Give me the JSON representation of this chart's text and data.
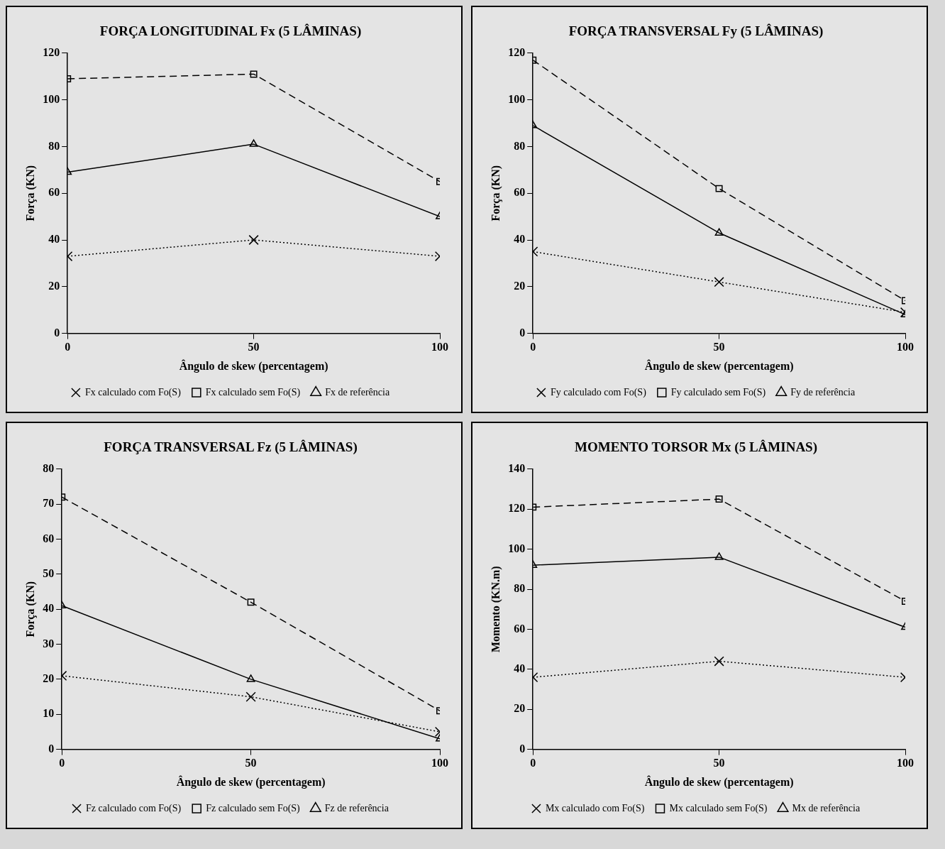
{
  "chart_data": [
    {
      "type": "line",
      "title": "FORÇA LONGITUDINAL Fx (5 LÂMINAS)",
      "xlabel": "Ângulo de skew (percentagem)",
      "ylabel": "Força (KN)",
      "x": [
        0,
        50,
        100
      ],
      "xlim": [
        0,
        100
      ],
      "xticks": [
        0,
        50,
        100
      ],
      "ylim": [
        0,
        120
      ],
      "yticks": [
        0,
        20,
        40,
        60,
        80,
        100,
        120
      ],
      "grid": false,
      "legend": "bottom",
      "series": [
        {
          "name": "Fx calculado com Fo(S)",
          "color": "#000000",
          "marker": "cross",
          "line_style": "dotted",
          "values": [
            33,
            40,
            33
          ]
        },
        {
          "name": "Fx calculado sem Fo(S)",
          "color": "#000000",
          "marker": "square",
          "line_style": "dashed",
          "values": [
            109,
            111,
            65
          ]
        },
        {
          "name": "Fx de referência",
          "color": "#000000",
          "marker": "triangle",
          "line_style": "solid",
          "values": [
            69,
            81,
            50
          ]
        }
      ]
    },
    {
      "type": "line",
      "title": "FORÇA TRANSVERSAL Fy (5 LÂMINAS)",
      "xlabel": "Ângulo de skew (percentagem)",
      "ylabel": "Força (KN)",
      "x": [
        0,
        50,
        100
      ],
      "xlim": [
        0,
        100
      ],
      "xticks": [
        0,
        50,
        100
      ],
      "ylim": [
        0,
        120
      ],
      "yticks": [
        0,
        20,
        40,
        60,
        80,
        100,
        120
      ],
      "grid": false,
      "legend": "bottom",
      "series": [
        {
          "name": "Fy calculado com Fo(S)",
          "color": "#000000",
          "marker": "cross",
          "line_style": "dotted",
          "values": [
            35,
            22,
            9
          ]
        },
        {
          "name": "Fy calculado sem Fo(S)",
          "color": "#000000",
          "marker": "square",
          "line_style": "dashed",
          "values": [
            117,
            62,
            14
          ]
        },
        {
          "name": "Fy de referência",
          "color": "#000000",
          "marker": "triangle",
          "line_style": "solid",
          "values": [
            89,
            43,
            8
          ]
        }
      ]
    },
    {
      "type": "line",
      "title": "FORÇA TRANSVERSAL Fz (5 LÂMINAS)",
      "xlabel": "Ângulo de skew (percentagem)",
      "ylabel": "Força (KN)",
      "x": [
        0,
        50,
        100
      ],
      "xlim": [
        0,
        100
      ],
      "xticks": [
        0,
        50,
        100
      ],
      "ylim": [
        0,
        80
      ],
      "yticks": [
        0,
        10,
        20,
        30,
        40,
        50,
        60,
        70,
        80
      ],
      "grid": false,
      "legend": "bottom",
      "series": [
        {
          "name": "Fz calculado com Fo(S)",
          "color": "#000000",
          "marker": "cross",
          "line_style": "dotted",
          "values": [
            21,
            15,
            5
          ]
        },
        {
          "name": "Fz calculado sem Fo(S)",
          "color": "#000000",
          "marker": "square",
          "line_style": "dashed",
          "values": [
            72,
            42,
            11
          ]
        },
        {
          "name": "Fz de referência",
          "color": "#000000",
          "marker": "triangle",
          "line_style": "solid",
          "values": [
            41,
            20,
            3
          ]
        }
      ]
    },
    {
      "type": "line",
      "title": "MOMENTO TORSOR Mx (5 LÂMINAS)",
      "xlabel": "Ângulo de skew (percentagem)",
      "ylabel": "Momento (KN.m)",
      "x": [
        0,
        50,
        100
      ],
      "xlim": [
        0,
        100
      ],
      "xticks": [
        0,
        50,
        100
      ],
      "ylim": [
        0,
        140
      ],
      "yticks": [
        0,
        20,
        40,
        60,
        80,
        100,
        120,
        140
      ],
      "grid": false,
      "legend": "bottom",
      "series": [
        {
          "name": "Mx calculado com Fo(S)",
          "color": "#000000",
          "marker": "cross",
          "line_style": "dotted",
          "values": [
            36,
            44,
            36
          ]
        },
        {
          "name": "Mx calculado sem Fo(S)",
          "color": "#000000",
          "marker": "square",
          "line_style": "dashed",
          "values": [
            121,
            125,
            74
          ]
        },
        {
          "name": "Mx de referência",
          "color": "#000000",
          "marker": "triangle",
          "line_style": "solid",
          "values": [
            92,
            96,
            61
          ]
        }
      ]
    }
  ]
}
